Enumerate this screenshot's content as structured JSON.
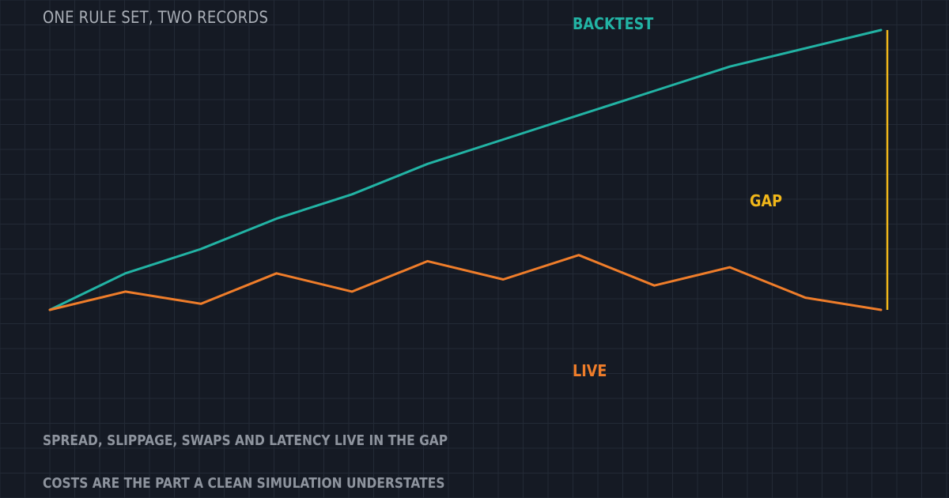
{
  "title": "ONE RULE SET, TWO RECORDS",
  "notes": [
    "SPREAD, SLIPPAGE, SWAPS AND LATENCY LIVE IN THE GAP",
    "COSTS ARE THE PART A CLEAN SIMULATION UNDERSTATES"
  ],
  "colors": {
    "background": "#151a24",
    "grid": "#232a36",
    "backtest": "#22b3a4",
    "live": "#ef7d2a",
    "gap": "#f1b71a"
  },
  "chart_data": {
    "type": "line",
    "grid": true,
    "x": [
      0,
      1,
      2,
      3,
      4,
      5,
      6,
      7,
      8,
      9,
      10,
      11
    ],
    "series": [
      {
        "name": "BACKTEST",
        "color": "#22b3a4",
        "values": [
          0,
          12,
          20,
          30,
          38,
          48,
          56,
          64,
          72,
          80,
          86,
          92
        ]
      },
      {
        "name": "LIVE",
        "color": "#ef7d2a",
        "values": [
          0,
          6,
          2,
          12,
          6,
          16,
          10,
          18,
          8,
          14,
          4,
          0
        ]
      }
    ],
    "annotation": {
      "label": "GAP",
      "color": "#f1b71a",
      "at_x": 11,
      "from_series": "LIVE",
      "to_series": "BACKTEST"
    }
  }
}
